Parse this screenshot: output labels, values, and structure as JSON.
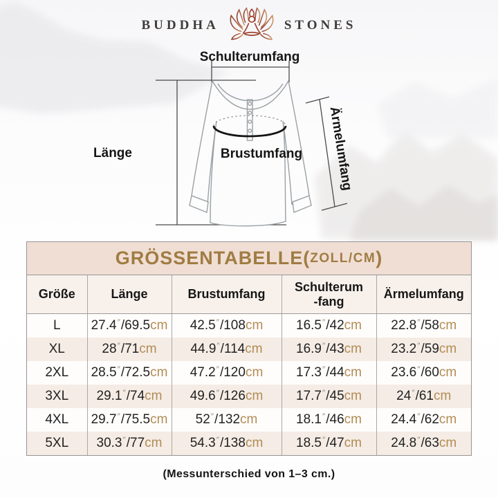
{
  "logo": {
    "brand_left": "BUDDHA",
    "brand_right": "STONES",
    "icon": "lotus-meditation-icon"
  },
  "diagram": {
    "labels": {
      "shoulder": "Schulterumfang",
      "length": "Länge",
      "chest": "Brustumfang",
      "sleeve": "Ärmelumfang"
    }
  },
  "table": {
    "title": {
      "main": "GRÖSSENTABELLE(",
      "units": "ZOLL/CM",
      "close": ")"
    },
    "headers": [
      "Größe",
      "Länge",
      "Brustumfang",
      "Schulterum\n-fang",
      "Ärmelumfang"
    ],
    "units": {
      "inch_mark": "″",
      "separator": "/",
      "cm_label": "cm"
    },
    "rows": [
      {
        "size": "L",
        "cols": [
          {
            "in": "27.4",
            "cm": "69.5"
          },
          {
            "in": "42.5",
            "cm": "108"
          },
          {
            "in": "16.5",
            "cm": "42"
          },
          {
            "in": "22.8",
            "cm": "58"
          }
        ]
      },
      {
        "size": "XL",
        "cols": [
          {
            "in": "28",
            "cm": "71"
          },
          {
            "in": "44.9",
            "cm": "114"
          },
          {
            "in": "16.9",
            "cm": "43"
          },
          {
            "in": "23.2",
            "cm": "59"
          }
        ]
      },
      {
        "size": "2XL",
        "cols": [
          {
            "in": "28.5",
            "cm": "72.5"
          },
          {
            "in": "47.2",
            "cm": "120"
          },
          {
            "in": "17.3",
            "cm": "44"
          },
          {
            "in": "23.6",
            "cm": "60"
          }
        ]
      },
      {
        "size": "3XL",
        "cols": [
          {
            "in": "29.1",
            "cm": "74"
          },
          {
            "in": "49.6",
            "cm": "126"
          },
          {
            "in": "17.7",
            "cm": "45"
          },
          {
            "in": "24",
            "cm": "61"
          }
        ]
      },
      {
        "size": "4XL",
        "cols": [
          {
            "in": "29.7",
            "cm": "75.5"
          },
          {
            "in": "52",
            "cm": "132"
          },
          {
            "in": "18.1",
            "cm": "46"
          },
          {
            "in": "24.4",
            "cm": "62"
          }
        ]
      },
      {
        "size": "5XL",
        "cols": [
          {
            "in": "30.3",
            "cm": "77"
          },
          {
            "in": "54.3",
            "cm": "138"
          },
          {
            "in": "18.5",
            "cm": "47"
          },
          {
            "in": "24.8",
            "cm": "63"
          }
        ]
      }
    ]
  },
  "footnote": "(Messunterschied von 1–3 cm.)",
  "colors": {
    "title_text": "#a07c42",
    "title_bg": "#f0ded4",
    "header_bg": "#f8f1eb",
    "stripe_bg": "#f5ece5",
    "cm_text": "#b28c55",
    "border": "#959595",
    "logo_accent": "#9c4431",
    "logo_accent_light": "#cd9166"
  }
}
